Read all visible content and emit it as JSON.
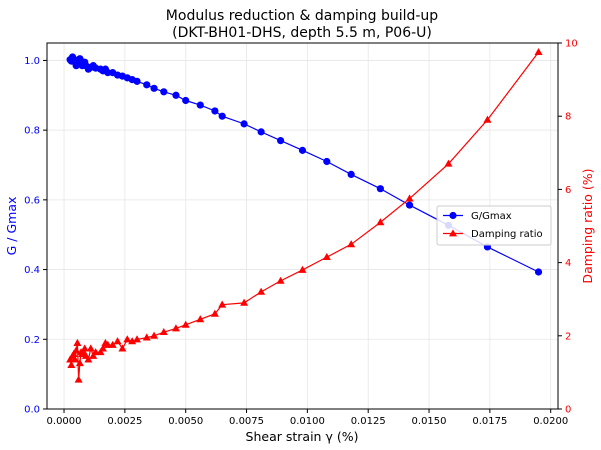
{
  "chart_data": {
    "type": "line",
    "title": "Modulus reduction & damping build-up",
    "subtitle": "(DKT-BH01-DHS, depth 5.5 m, P06-U)",
    "xlabel": "Shear strain γ (%)",
    "ylabel_left": "G / Gmax",
    "ylabel_right": "Damping ratio (%)",
    "xlim": [
      -0.0007,
      0.0203
    ],
    "ylim_left": [
      0.0,
      1.05
    ],
    "ylim_right": [
      0,
      10
    ],
    "x_ticks": [
      "0.0000",
      "0.0025",
      "0.0050",
      "0.0075",
      "0.0100",
      "0.0125",
      "0.0150",
      "0.0175",
      "0.0200"
    ],
    "y_ticks_left": [
      "0.0",
      "0.2",
      "0.4",
      "0.6",
      "0.8",
      "1.0"
    ],
    "y_ticks_right": [
      "0",
      "2",
      "4",
      "6",
      "8",
      "10"
    ],
    "grid": true,
    "legend_position": "center-right",
    "colors": {
      "modulus": "#0000ff",
      "damping": "#ff0000",
      "left_axis": "#0000ff",
      "right_axis": "#ff0000"
    },
    "series": [
      {
        "name": "G/Gmax",
        "axis": "left",
        "marker": "circle",
        "x": [
          0.00025,
          0.0003,
          0.00035,
          0.0004,
          0.00045,
          0.0005,
          0.00055,
          0.0006,
          0.00065,
          0.0007,
          0.00075,
          0.0008,
          0.00085,
          0.0009,
          0.001,
          0.0011,
          0.0012,
          0.0013,
          0.0015,
          0.0016,
          0.0017,
          0.0018,
          0.002,
          0.0022,
          0.0024,
          0.0026,
          0.0028,
          0.003,
          0.0034,
          0.0037,
          0.0041,
          0.0046,
          0.005,
          0.0056,
          0.0062,
          0.0065,
          0.0074,
          0.0081,
          0.0089,
          0.0098,
          0.0108,
          0.0118,
          0.013,
          0.0142,
          0.0158,
          0.0174,
          0.0195
        ],
        "y": [
          1.002,
          0.998,
          1.01,
          1.004,
          0.995,
          0.985,
          0.99,
          1.0,
          1.005,
          0.998,
          0.985,
          0.99,
          0.995,
          0.985,
          0.975,
          0.98,
          0.985,
          0.978,
          0.975,
          0.97,
          0.975,
          0.965,
          0.965,
          0.958,
          0.955,
          0.95,
          0.945,
          0.94,
          0.93,
          0.92,
          0.91,
          0.9,
          0.885,
          0.872,
          0.855,
          0.84,
          0.818,
          0.795,
          0.77,
          0.742,
          0.71,
          0.673,
          0.632,
          0.585,
          0.527,
          0.465,
          0.393
        ]
      },
      {
        "name": "Damping ratio",
        "axis": "right",
        "marker": "triangle",
        "x": [
          0.00025,
          0.0003,
          0.00035,
          0.0004,
          0.00045,
          0.0005,
          0.00055,
          0.0006,
          0.00065,
          0.0007,
          0.00075,
          0.0008,
          0.00085,
          0.0009,
          0.001,
          0.0011,
          0.0012,
          0.0013,
          0.0015,
          0.0016,
          0.0017,
          0.0018,
          0.002,
          0.0022,
          0.0024,
          0.0026,
          0.0028,
          0.003,
          0.0034,
          0.0037,
          0.0041,
          0.0046,
          0.005,
          0.0056,
          0.0062,
          0.0065,
          0.0074,
          0.0081,
          0.0089,
          0.0098,
          0.0108,
          0.0118,
          0.013,
          0.0142,
          0.0158,
          0.0174,
          0.0195
        ],
        "y": [
          1.35,
          1.2,
          1.45,
          1.5,
          1.35,
          1.6,
          1.8,
          0.8,
          1.25,
          1.55,
          1.5,
          1.5,
          1.65,
          1.45,
          1.35,
          1.65,
          1.45,
          1.55,
          1.55,
          1.65,
          1.8,
          1.75,
          1.75,
          1.85,
          1.65,
          1.9,
          1.85,
          1.9,
          1.95,
          2.0,
          2.1,
          2.2,
          2.3,
          2.45,
          2.6,
          2.85,
          2.9,
          3.2,
          3.5,
          3.8,
          4.15,
          4.5,
          5.1,
          5.75,
          6.7,
          7.9,
          9.75
        ]
      }
    ]
  }
}
